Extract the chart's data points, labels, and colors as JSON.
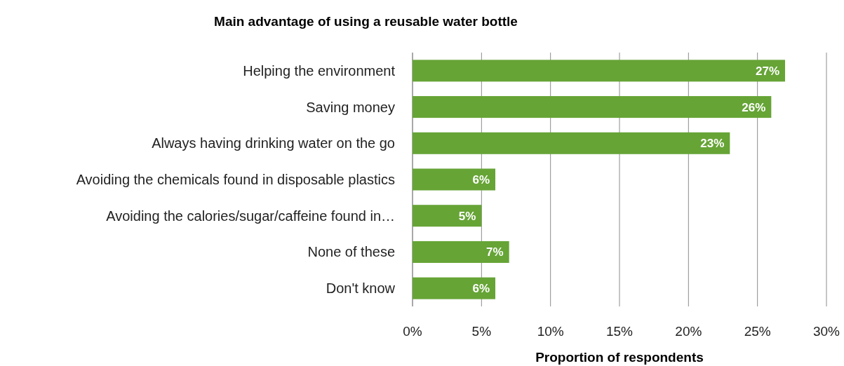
{
  "chart_data": {
    "type": "bar",
    "orientation": "horizontal",
    "title": "Main advantage of using a reusable water bottle",
    "xlabel": "Proportion of respondents",
    "categories": [
      "Helping the environment",
      "Saving money",
      "Always having drinking water on the go",
      "Avoiding the chemicals found in disposable plastics",
      "Avoiding the calories/sugar/caffeine found in…",
      "None of these",
      "Don't know"
    ],
    "values": [
      27,
      26,
      23,
      6,
      5,
      7,
      6
    ],
    "value_labels": [
      "27%",
      "26%",
      "23%",
      "6%",
      "5%",
      "7%",
      "6%"
    ],
    "color": "#66a436",
    "xlim": [
      0,
      30
    ],
    "xticks": [
      {
        "value": 0,
        "label": "0%"
      },
      {
        "value": 5,
        "label": "5%"
      },
      {
        "value": 10,
        "label": "10%"
      },
      {
        "value": 15,
        "label": "15%"
      },
      {
        "value": 20,
        "label": "20%"
      },
      {
        "value": 25,
        "label": "25%"
      },
      {
        "value": 30,
        "label": "30%"
      }
    ],
    "grid": "x"
  }
}
